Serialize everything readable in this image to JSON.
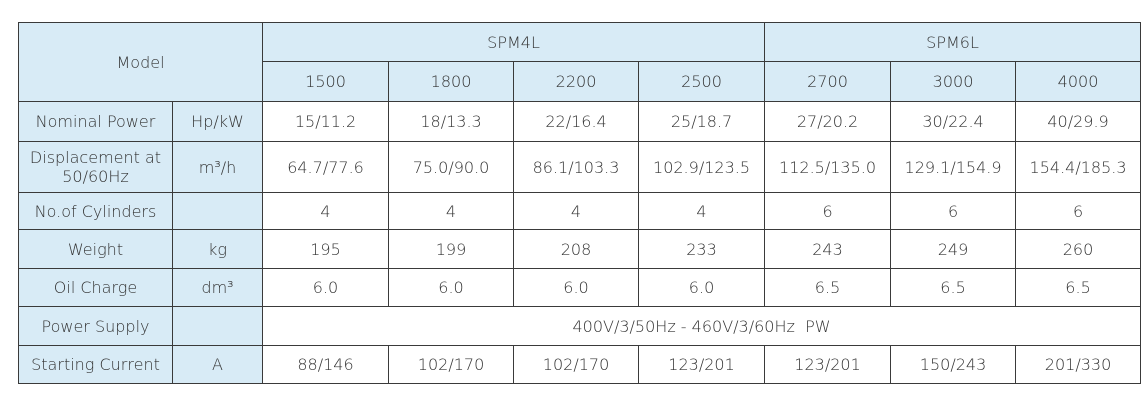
{
  "table": {
    "model": "Model",
    "groups": [
      {
        "label": "SPM4L",
        "span": 4
      },
      {
        "label": "SPM6L",
        "span": 3
      }
    ],
    "speeds": [
      "1500",
      "1800",
      "2200",
      "2500",
      "2700",
      "3000",
      "4000"
    ],
    "rows": [
      {
        "label": "Nominal Power",
        "unit": "Hp/kW",
        "values": [
          "15/11.2",
          "18/13.3",
          "22/16.4",
          "25/18.7",
          "27/20.2",
          "30/22.4",
          "40/29.9"
        ]
      },
      {
        "label": "Displacement at 50/60Hz",
        "unit": "m³/h",
        "values": [
          "64.7/77.6",
          "75.0/90.0",
          "86.1/103.3",
          "102.9/123.5",
          "112.5/135.0",
          "129.1/154.9",
          "154.4/185.3"
        ]
      },
      {
        "label": "No.of Cylinders",
        "unit": null,
        "values": [
          "4",
          "4",
          "4",
          "4",
          "6",
          "6",
          "6"
        ]
      },
      {
        "label": "Weight",
        "unit": "kg",
        "values": [
          "195",
          "199",
          "208",
          "233",
          "243",
          "249",
          "260"
        ]
      },
      {
        "label": "Oil Charge",
        "unit": "dm³",
        "values": [
          "6.0",
          "6.0",
          "6.0",
          "6.0",
          "6.5",
          "6.5",
          "6.5"
        ]
      },
      {
        "label": "Power Supply",
        "unit": null,
        "values": [
          "400V/3/50Hz - 460V/3/60Hz  PW"
        ]
      },
      {
        "label": "Starting Current",
        "unit": "A",
        "values": [
          "88/146",
          "102/170",
          "102/170",
          "123/201",
          "123/201",
          "150/243",
          "201/330"
        ]
      }
    ]
  }
}
